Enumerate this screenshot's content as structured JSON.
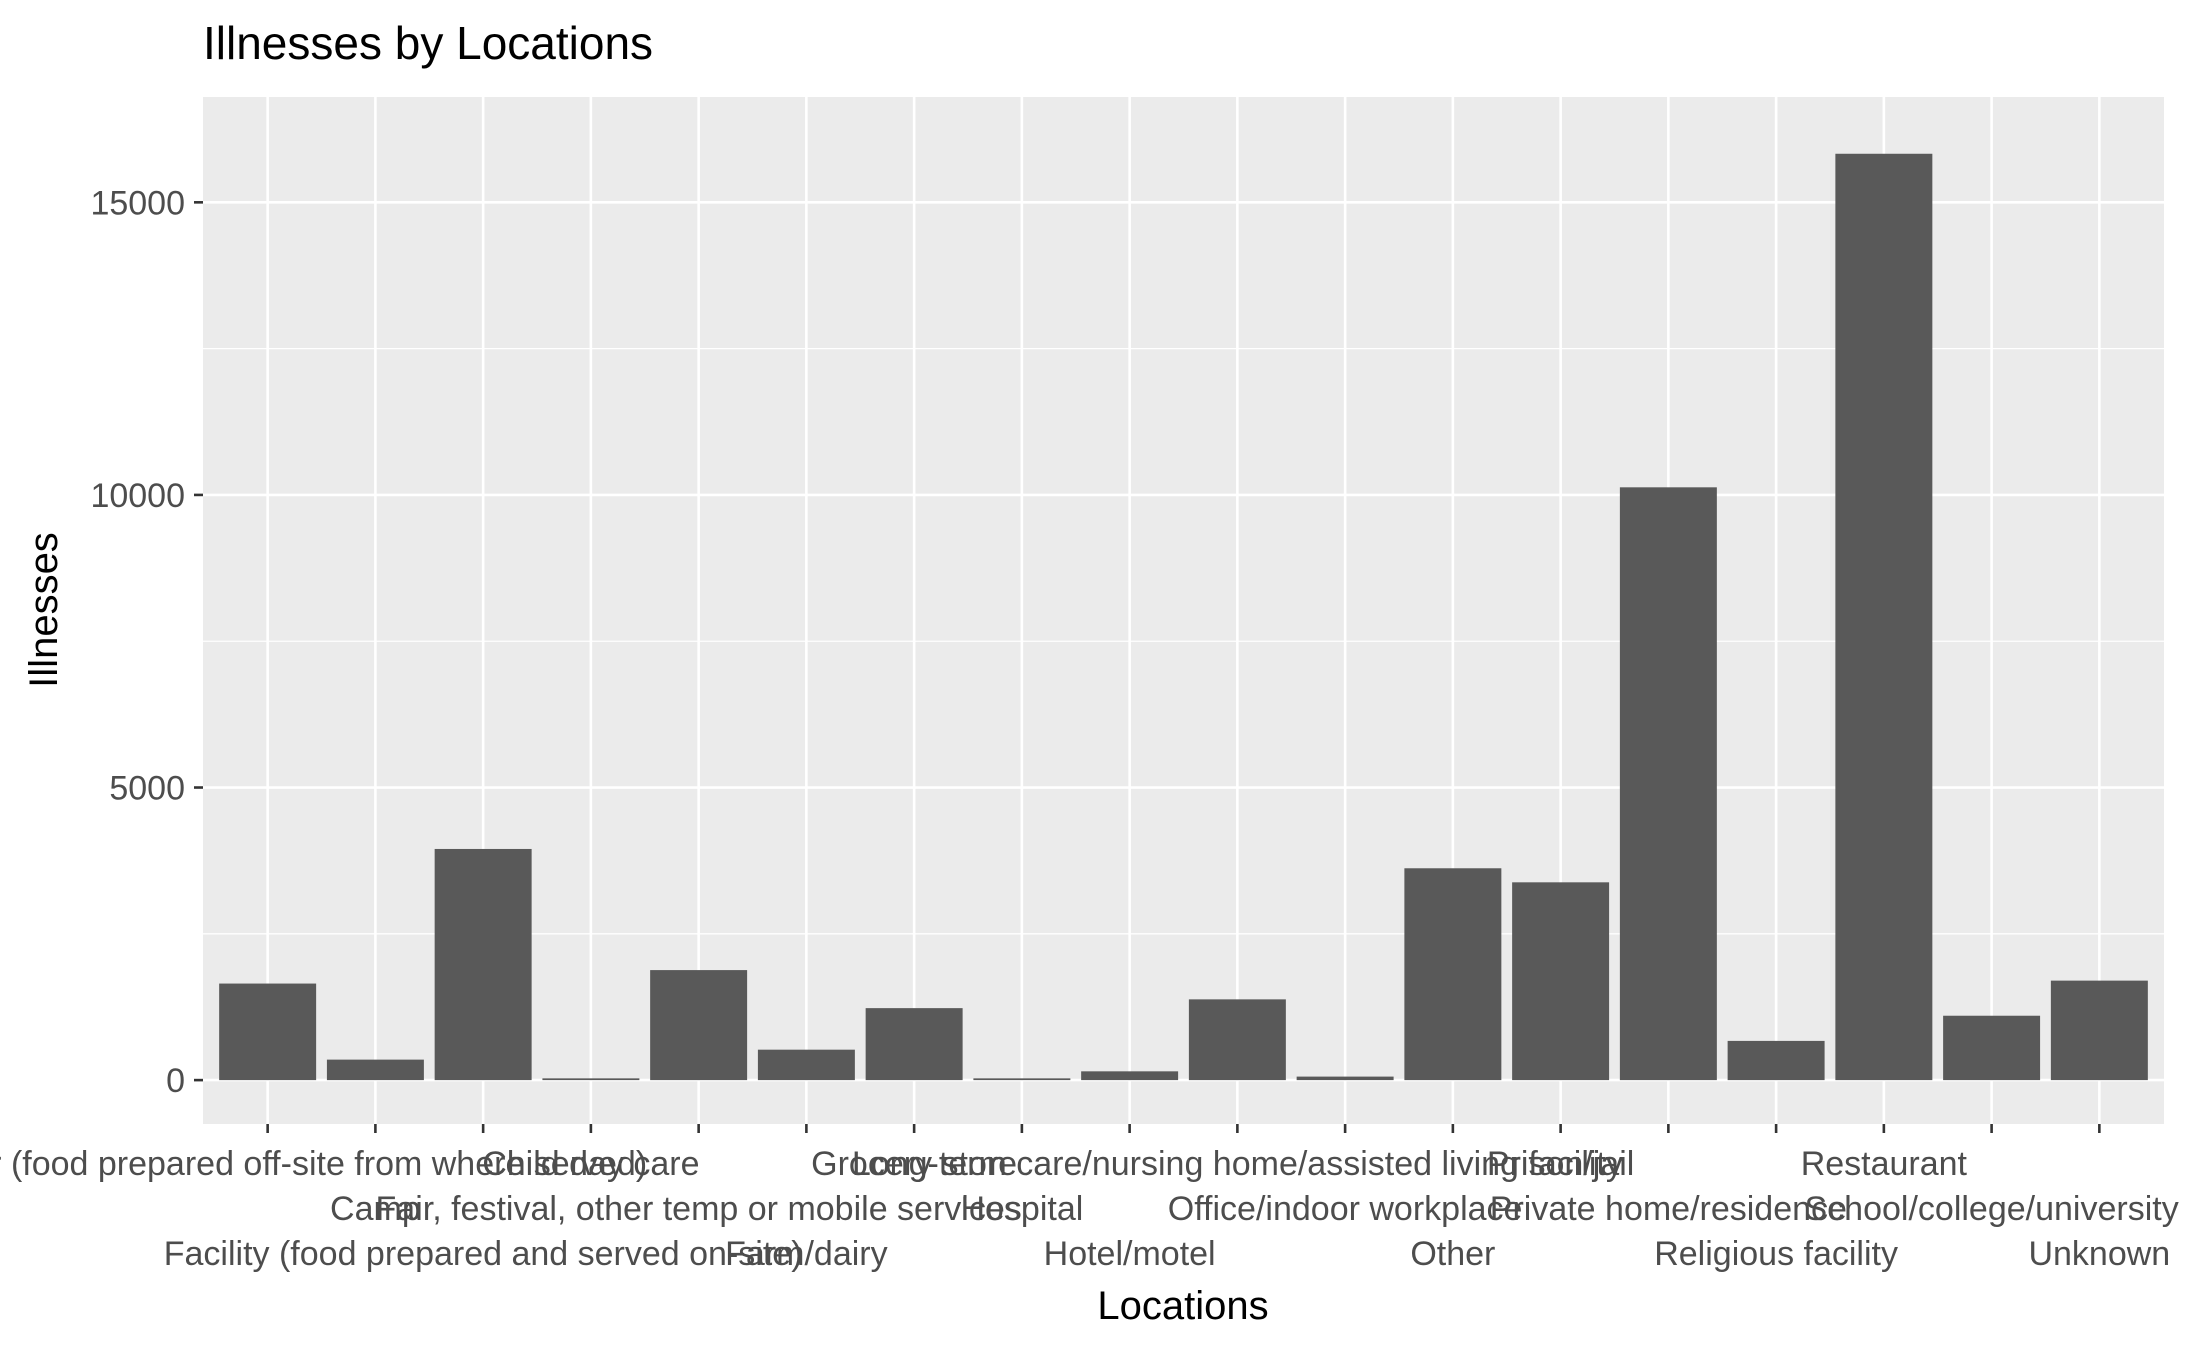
{
  "chart_data": {
    "type": "bar",
    "title": "Illnesses by Locations",
    "xlabel": "Locations",
    "ylabel": "Illnesses",
    "ylim": [
      -750,
      16800
    ],
    "yticks": [
      0,
      5000,
      10000,
      15000
    ],
    "grid": true,
    "legend": "none",
    "bar_color": "#595959",
    "panel_color": "#ebebeb",
    "categories": [
      "Caterer (food prepared off-site from where served)",
      "Camp",
      "Facility (food prepared and served on-site)",
      "Child day care",
      "Fair, festival, other temp or mobile services",
      "Farm/dairy",
      "Grocery store",
      "Hospital",
      "Hotel/motel",
      "Long-term care/nursing home/assisted living facility",
      "Office/indoor workplace",
      "Other",
      "Prison/jail",
      "Private home/residence",
      "Religious facility",
      "Restaurant",
      "School/college/university",
      "Unknown"
    ],
    "values": [
      1650,
      350,
      3950,
      30,
      1880,
      520,
      1230,
      30,
      150,
      1380,
      60,
      3620,
      3380,
      10130,
      670,
      15830,
      1100,
      1700
    ]
  }
}
